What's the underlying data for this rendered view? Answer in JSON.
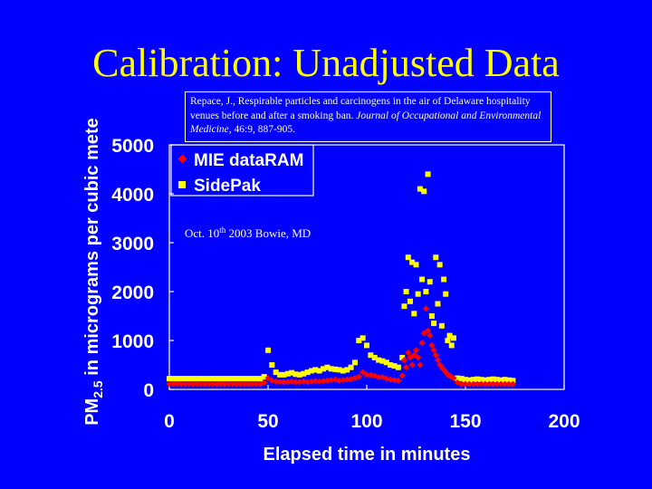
{
  "slide": {
    "title": "Calibration: Unadjusted Data",
    "citation": {
      "authors": "Repace, J., Respirable particles and carcinogens in the air of Delaware hospitality venues before and after a smoking ban.",
      "journal": "Journal of Occupational and Environmental Medicine",
      "details": ", 46:9, 887-905."
    }
  },
  "colors": {
    "background": "#0000ff",
    "dataram": "#ff0000",
    "sidepak": "#ffff00",
    "text": "#ffffff"
  },
  "chart_data": {
    "type": "scatter",
    "xlabel": "Elapsed time in minutes",
    "ylabel": {
      "main": "PM",
      "sub": "2.5",
      "rest": " in micrograms per cubic mete"
    },
    "xlim": [
      0,
      200
    ],
    "ylim": [
      0,
      5000
    ],
    "xticks": [
      0,
      50,
      100,
      150,
      200
    ],
    "yticks": [
      0,
      1000,
      2000,
      3000,
      4000,
      5000
    ],
    "grid": false,
    "legend_position": "top-left",
    "annotation": {
      "pre": "Oct. 10",
      "sup": "th",
      "post": " 2003 Bowie, MD"
    },
    "series": [
      {
        "name": "MIE dataRAM",
        "marker": "diamond",
        "color": "#ff0000",
        "x": [
          0,
          2,
          4,
          6,
          8,
          10,
          12,
          14,
          16,
          18,
          20,
          22,
          24,
          26,
          28,
          30,
          32,
          34,
          36,
          38,
          40,
          42,
          44,
          46,
          48,
          50,
          52,
          54,
          56,
          58,
          60,
          62,
          64,
          66,
          68,
          70,
          72,
          74,
          76,
          78,
          80,
          82,
          84,
          86,
          88,
          90,
          92,
          94,
          96,
          98,
          100,
          102,
          104,
          106,
          108,
          110,
          112,
          114,
          116,
          118,
          119,
          120,
          121,
          122,
          123,
          124,
          125,
          126,
          127,
          128,
          129,
          130,
          131,
          132,
          133,
          134,
          135,
          136,
          137,
          138,
          139,
          140,
          141,
          142,
          143,
          144,
          146,
          148,
          150,
          152,
          154,
          156,
          158,
          160,
          162,
          164,
          166,
          168,
          170,
          172,
          174
        ],
        "y": [
          110,
          110,
          110,
          110,
          110,
          110,
          110,
          110,
          110,
          110,
          110,
          110,
          110,
          110,
          110,
          110,
          110,
          110,
          110,
          110,
          110,
          110,
          110,
          110,
          140,
          230,
          180,
          160,
          150,
          150,
          150,
          160,
          150,
          150,
          160,
          150,
          160,
          170,
          160,
          170,
          180,
          190,
          200,
          180,
          190,
          200,
          210,
          230,
          260,
          350,
          300,
          290,
          280,
          250,
          250,
          220,
          200,
          190,
          180,
          280,
          600,
          450,
          750,
          650,
          500,
          700,
          800,
          650,
          500,
          950,
          1150,
          1650,
          1200,
          1100,
          900,
          800,
          700,
          600,
          500,
          450,
          400,
          350,
          300,
          280,
          250,
          230,
          140,
          110,
          110,
          110,
          110,
          110,
          110,
          110,
          110,
          110,
          110,
          110,
          110,
          110,
          110
        ]
      },
      {
        "name": "SidePak",
        "marker": "square",
        "color": "#ffff00",
        "x": [
          0,
          2,
          4,
          6,
          8,
          10,
          12,
          14,
          16,
          18,
          20,
          22,
          24,
          26,
          28,
          30,
          32,
          34,
          36,
          38,
          40,
          42,
          44,
          46,
          48,
          50,
          52,
          54,
          56,
          58,
          60,
          62,
          64,
          66,
          68,
          70,
          72,
          74,
          76,
          78,
          80,
          82,
          84,
          86,
          88,
          90,
          92,
          94,
          96,
          98,
          100,
          102,
          104,
          106,
          108,
          110,
          112,
          114,
          116,
          118,
          119,
          120,
          121,
          122,
          123,
          124,
          125,
          126,
          127,
          128,
          129,
          130,
          131,
          132,
          133,
          134,
          135,
          136,
          137,
          138,
          139,
          140,
          141,
          142,
          143,
          144,
          146,
          148,
          150,
          152,
          154,
          156,
          158,
          160,
          162,
          164,
          166,
          168,
          170,
          172,
          174
        ],
        "y": [
          220,
          220,
          220,
          220,
          220,
          220,
          220,
          220,
          220,
          220,
          220,
          220,
          220,
          220,
          220,
          220,
          220,
          220,
          220,
          220,
          220,
          220,
          220,
          220,
          260,
          800,
          500,
          350,
          300,
          300,
          320,
          340,
          310,
          300,
          320,
          350,
          380,
          400,
          380,
          420,
          450,
          420,
          410,
          400,
          380,
          400,
          450,
          550,
          1000,
          1050,
          900,
          700,
          650,
          600,
          580,
          550,
          500,
          480,
          450,
          650,
          1700,
          2000,
          2700,
          1800,
          2600,
          1550,
          2550,
          1950,
          4100,
          2250,
          4050,
          2000,
          4400,
          2200,
          1500,
          1350,
          2700,
          1750,
          2550,
          1300,
          2250,
          1950,
          1000,
          1100,
          900,
          1050,
          230,
          220,
          200,
          190,
          200,
          210,
          200,
          190,
          200,
          210,
          200,
          190,
          200,
          190,
          180
        ]
      }
    ]
  }
}
